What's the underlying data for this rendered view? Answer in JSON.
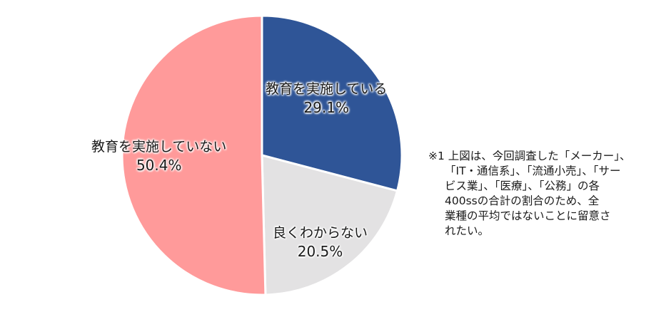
{
  "chart_data": {
    "type": "pie",
    "title": "",
    "categories": [
      "教育を実施している",
      "良くわからない",
      "教育を実施していない"
    ],
    "values": [
      29.1,
      20.5,
      50.4
    ],
    "unit": "%",
    "colors": [
      "#2f5597",
      "#e3e2e3",
      "#ff9a9a"
    ],
    "start_angle": "12 o'clock, clockwise",
    "legend": "none (data labels on slices)"
  },
  "labels": [
    {
      "name": "教育を実施している",
      "pct": "29.1%"
    },
    {
      "name": "良くわからない",
      "pct": "20.5%"
    },
    {
      "name": "教育を実施していない",
      "pct": "50.4%"
    }
  ],
  "note": {
    "lines": [
      "※1 上図は、今回調査した「メーカー」、",
      "「IT・通信系」、「流通小売」、「サー",
      "ビス業」、「医療」、「公務」の各",
      "400ssの合計の割合のため、全",
      "業種の平均ではないことに留意さ",
      "れたい。"
    ]
  }
}
